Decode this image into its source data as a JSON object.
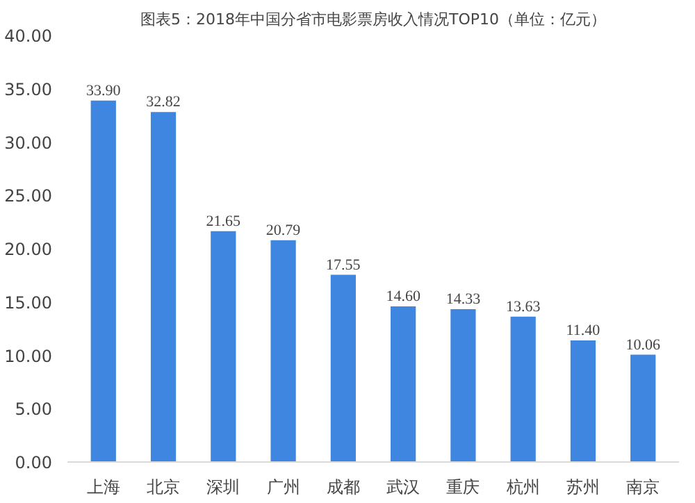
{
  "chart_data": {
    "type": "bar",
    "title": "图表5：2018年中国分省市电影票房收入情况TOP10（单位：亿元）",
    "categories": [
      "上海",
      "北京",
      "深圳",
      "广州",
      "成都",
      "武汉",
      "重庆",
      "杭州",
      "苏州",
      "南京"
    ],
    "values": [
      33.9,
      32.82,
      21.65,
      20.79,
      17.55,
      14.6,
      14.33,
      13.63,
      11.4,
      10.06
    ],
    "value_labels": [
      "33.90",
      "32.82",
      "21.65",
      "20.79",
      "17.55",
      "14.60",
      "14.33",
      "13.63",
      "11.40",
      "10.06"
    ],
    "color": "#3f86e0",
    "ylim": [
      0,
      40
    ],
    "yticks": [
      {
        "value": 0,
        "label": "0.00"
      },
      {
        "value": 5,
        "label": "5.00"
      },
      {
        "value": 10,
        "label": "10.00"
      },
      {
        "value": 15,
        "label": "15.00"
      },
      {
        "value": 20,
        "label": "20.00"
      },
      {
        "value": 25,
        "label": "25.00"
      },
      {
        "value": 30,
        "label": "30.00"
      },
      {
        "value": 35,
        "label": "35.00"
      },
      {
        "value": 40,
        "label": "40.00"
      }
    ],
    "grid": false
  }
}
